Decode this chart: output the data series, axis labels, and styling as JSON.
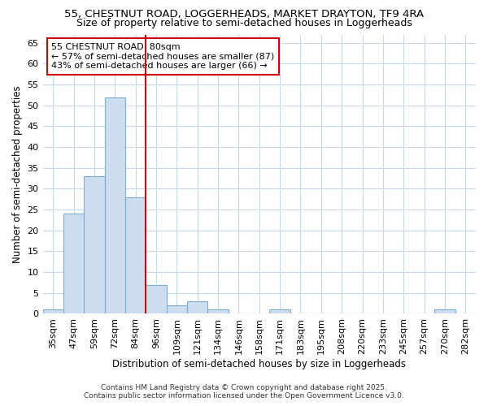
{
  "title_line1": "55, CHESTNUT ROAD, LOGGERHEADS, MARKET DRAYTON, TF9 4RA",
  "title_line2": "Size of property relative to semi-detached houses in Loggerheads",
  "xlabel": "Distribution of semi-detached houses by size in Loggerheads",
  "ylabel": "Number of semi-detached properties",
  "categories": [
    "35sqm",
    "47sqm",
    "59sqm",
    "72sqm",
    "84sqm",
    "96sqm",
    "109sqm",
    "121sqm",
    "134sqm",
    "146sqm",
    "158sqm",
    "171sqm",
    "183sqm",
    "195sqm",
    "208sqm",
    "220sqm",
    "233sqm",
    "245sqm",
    "257sqm",
    "270sqm",
    "282sqm"
  ],
  "values": [
    1,
    24,
    33,
    52,
    28,
    7,
    2,
    3,
    1,
    0,
    0,
    1,
    0,
    0,
    0,
    0,
    0,
    0,
    0,
    1,
    0
  ],
  "bar_color": "#ccddf0",
  "bar_edge_color": "#7aaed0",
  "vline_x": 4.5,
  "vline_color": "#cc0000",
  "ylim": [
    0,
    67
  ],
  "yticks": [
    0,
    5,
    10,
    15,
    20,
    25,
    30,
    35,
    40,
    45,
    50,
    55,
    60,
    65
  ],
  "annotation_title": "55 CHESTNUT ROAD: 80sqm",
  "annotation_line2": "← 57% of semi-detached houses are smaller (87)",
  "annotation_line3": "43% of semi-detached houses are larger (66) →",
  "annotation_box_color": "#cc0000",
  "footer_line1": "Contains HM Land Registry data © Crown copyright and database right 2025.",
  "footer_line2": "Contains public sector information licensed under the Open Government Licence v3.0.",
  "background_color": "#ffffff",
  "plot_bg_color": "#ffffff",
  "grid_color": "#c8d8e8",
  "title_fontsize": 9.5,
  "subtitle_fontsize": 9,
  "axis_label_fontsize": 8.5,
  "tick_fontsize": 8,
  "annotation_fontsize": 8,
  "footer_fontsize": 6.5
}
